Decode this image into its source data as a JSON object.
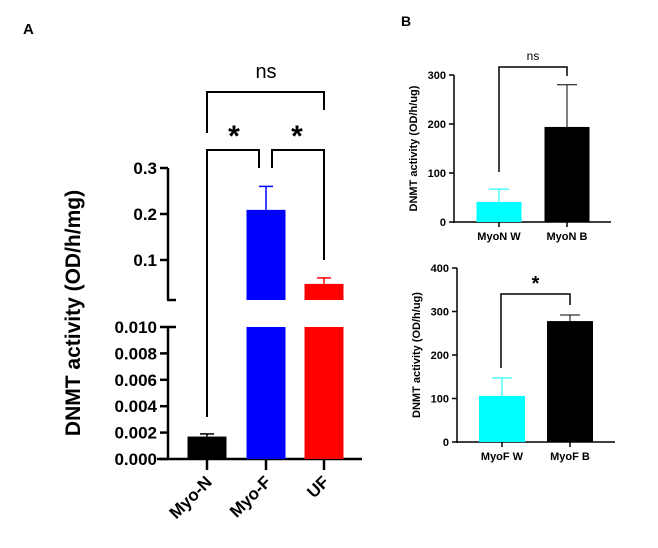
{
  "chart_data": [
    {
      "panel": "A",
      "type": "bar",
      "ylabel": "DNMT activity (OD/h/mg)",
      "categories": [
        "Myo-N",
        "Myo-F",
        "UF"
      ],
      "values": [
        0.0017,
        0.209,
        0.048
      ],
      "error_upper": [
        0.0019,
        0.26,
        0.061
      ],
      "colors": [
        "#000000",
        "#0000ff",
        "#ff0000"
      ],
      "y_axis_break": true,
      "ylim_lower": [
        0,
        0.01
      ],
      "ylim_upper": [
        0.013,
        0.3
      ],
      "yticks_lower": [
        "0.000",
        "0.002",
        "0.004",
        "0.006",
        "0.008",
        "0.010"
      ],
      "yticks_upper": [
        "0.1",
        "0.2",
        "0.3"
      ],
      "comparisons": [
        {
          "pair": [
            "Myo-N",
            "Myo-F"
          ],
          "label": "*"
        },
        {
          "pair": [
            "Myo-F",
            "UF"
          ],
          "label": "*"
        },
        {
          "pair": [
            "Myo-N",
            "UF"
          ],
          "label": "ns"
        }
      ],
      "grid": false
    },
    {
      "panel": "B",
      "type": "bar",
      "ylabel": "DNMT activity (OD/h/ug)",
      "categories": [
        "MyoN W",
        "MyoN B"
      ],
      "values": [
        41,
        194
      ],
      "error_upper": [
        67,
        280
      ],
      "colors": [
        "#00ffff",
        "#000000"
      ],
      "ylim": [
        0,
        300
      ],
      "yticks": [
        "0",
        "100",
        "200",
        "300"
      ],
      "comparisons": [
        {
          "pair": [
            "MyoN W",
            "MyoN B"
          ],
          "label": "ns"
        }
      ],
      "grid": false
    },
    {
      "panel": "",
      "type": "bar",
      "ylabel": "DNMT activity (OD/h/ug)",
      "categories": [
        "MyoF W",
        "MyoF B"
      ],
      "values": [
        106,
        278
      ],
      "error_upper": [
        147,
        292
      ],
      "colors": [
        "#00ffff",
        "#000000"
      ],
      "ylim": [
        0,
        400
      ],
      "yticks": [
        "0",
        "100",
        "200",
        "300",
        "400"
      ],
      "comparisons": [
        {
          "pair": [
            "MyoF W",
            "MyoF B"
          ],
          "label": "*"
        }
      ],
      "grid": false
    }
  ]
}
